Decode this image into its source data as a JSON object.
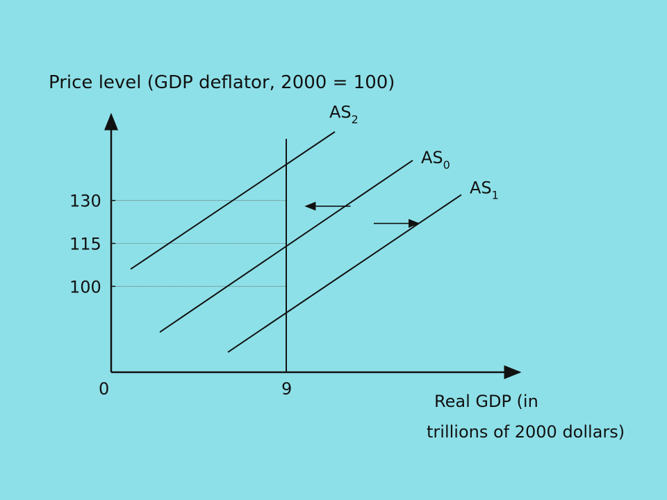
{
  "colors": {
    "background": "#8ee0e8",
    "ink": "#111111",
    "guide": "#555555"
  },
  "chart_data": {
    "type": "line",
    "title": "",
    "ylabel": "Price level (GDP deflator, 2000 = 100)",
    "xlabel_line1": "Real GDP (in",
    "xlabel_line2": "trillions of 2000 dollars)",
    "x_origin_label": "0",
    "x_ticks": [
      {
        "x": 9,
        "label": "9"
      }
    ],
    "y_ticks": [
      {
        "y": 100,
        "label": "100"
      },
      {
        "y": 115,
        "label": "115"
      },
      {
        "y": 130,
        "label": "130"
      }
    ],
    "xlim": [
      0,
      21
    ],
    "ylim": [
      70,
      160
    ],
    "vertical_line": {
      "name": "",
      "x": 9
    },
    "series": [
      {
        "label_main": "AS",
        "label_sub": "2",
        "x": [
          1,
          11.5
        ],
        "y": [
          106,
          154
        ]
      },
      {
        "label_main": "AS",
        "label_sub": "0",
        "x": [
          2.5,
          15.5
        ],
        "y": [
          84,
          144
        ]
      },
      {
        "label_main": "AS",
        "label_sub": "1",
        "x": [
          6,
          18
        ],
        "y": [
          77,
          132
        ]
      }
    ],
    "arrows": [
      {
        "direction": "left",
        "x_from": 12.3,
        "x_to": 10,
        "y": 128
      },
      {
        "direction": "right",
        "x_from": 13.5,
        "x_to": 15.8,
        "y": 122
      }
    ],
    "grid": false,
    "legend": "none"
  }
}
